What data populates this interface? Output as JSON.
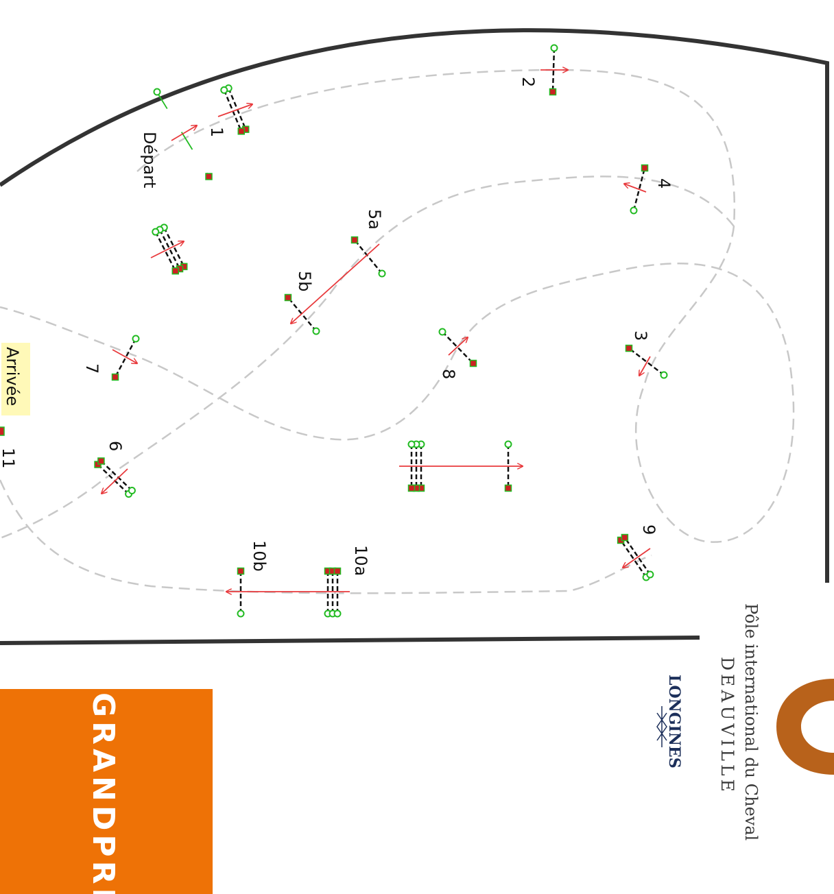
{
  "course": {
    "start_label": "Départ",
    "finish_label": "Arrivée",
    "obstacles": [
      {
        "id": "1",
        "label": "1"
      },
      {
        "id": "2",
        "label": "2"
      },
      {
        "id": "3",
        "label": "3"
      },
      {
        "id": "4",
        "label": "4"
      },
      {
        "id": "5a",
        "label": "5a"
      },
      {
        "id": "5b",
        "label": "5b"
      },
      {
        "id": "6",
        "label": "6"
      },
      {
        "id": "7",
        "label": "7"
      },
      {
        "id": "8",
        "label": "8"
      },
      {
        "id": "9",
        "label": "9"
      },
      {
        "id": "10a",
        "label": "10a"
      },
      {
        "id": "10b",
        "label": "10b"
      },
      {
        "id": "11",
        "label": "11"
      }
    ],
    "colors": {
      "path": "#c8c8c8",
      "arrow": "#e8393c",
      "pole_end_green": "#22bb22",
      "pole_end_red": "#cc2222",
      "arena_border": "#333333",
      "finish_highlight": "#fff9b8"
    }
  },
  "logos": {
    "venue_line1": "Pôle international du Cheval",
    "venue_line2": "DEAUVILLE",
    "venue_color": "#b8621b",
    "sponsor": "LONGINES",
    "sponsor_color": "#1c2f5a",
    "banner": "GRANDPRIX",
    "banner_color": "#ee7206"
  }
}
